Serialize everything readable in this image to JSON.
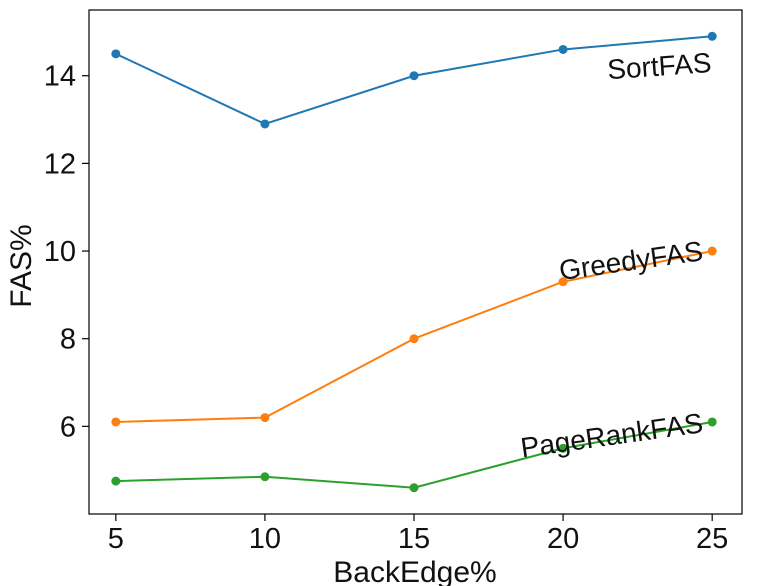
{
  "chart_data": {
    "type": "line",
    "title": "",
    "xlabel": "BackEdge%",
    "ylabel": "FAS%",
    "x": [
      5,
      10,
      15,
      20,
      25
    ],
    "xticks": [
      "5",
      "10",
      "15",
      "20",
      "25"
    ],
    "yticks": [
      "6",
      "8",
      "10",
      "12",
      "14"
    ],
    "xlim": [
      4.1,
      26
    ],
    "ylim": [
      4.0,
      15.5
    ],
    "grid": false,
    "legend": "none",
    "series": [
      {
        "name": "SortFAS",
        "color": "#1f77b4",
        "values": [
          14.5,
          12.9,
          14.0,
          14.6,
          14.9
        ]
      },
      {
        "name": "GreedyFAS",
        "color": "#ff7f0e",
        "values": [
          6.1,
          6.2,
          8.0,
          9.3,
          10.0
        ]
      },
      {
        "name": "PageRankFAS",
        "color": "#2ca02c",
        "values": [
          4.75,
          4.85,
          4.6,
          5.5,
          6.1
        ]
      }
    ]
  }
}
